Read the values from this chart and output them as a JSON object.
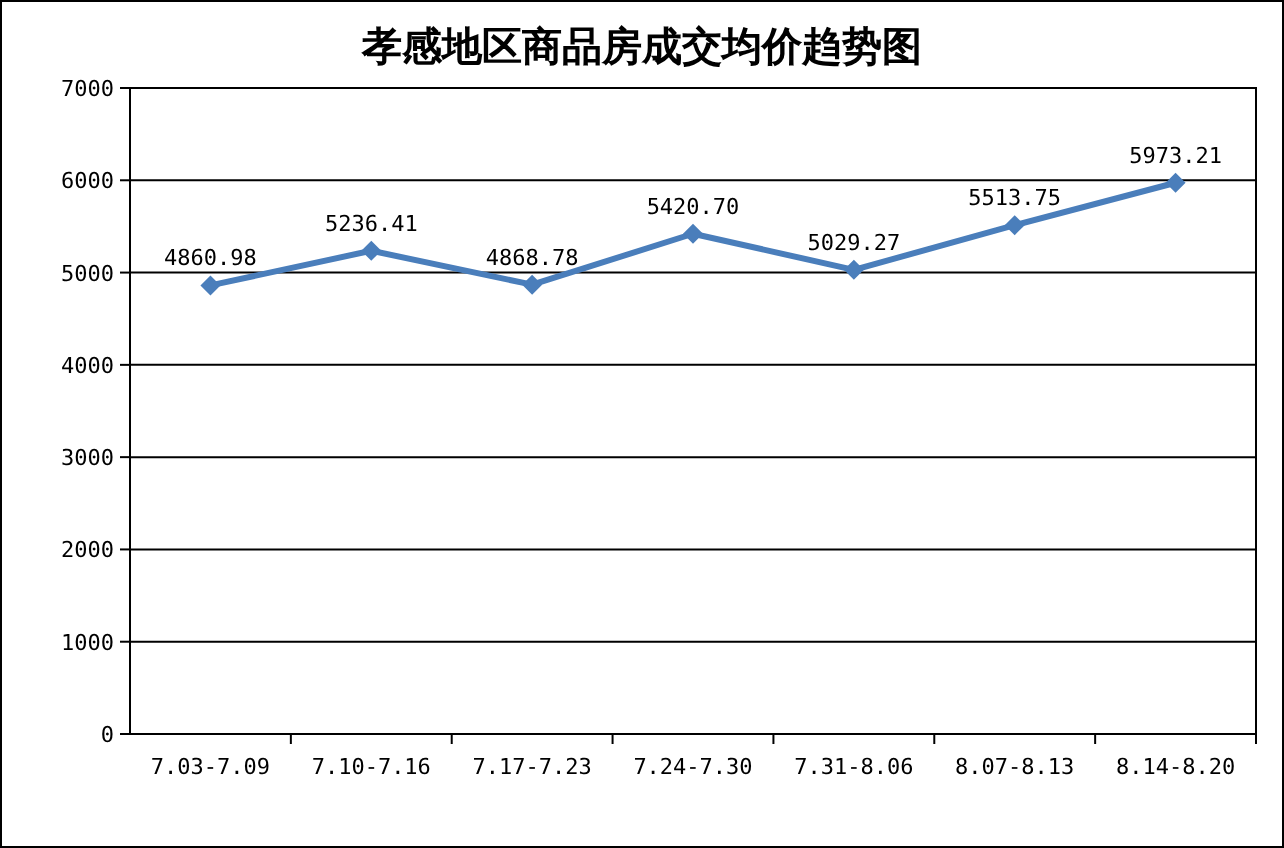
{
  "chart_data": {
    "type": "line",
    "title": "孝感地区商品房成交均价趋势图",
    "categories": [
      "7.03-7.09",
      "7.10-7.16",
      "7.17-7.23",
      "7.24-7.30",
      "7.31-8.06",
      "8.07-8.13",
      "8.14-8.20"
    ],
    "series": [
      {
        "color": "#4a7ebb",
        "values": [
          4860.98,
          5236.41,
          4868.78,
          5420.7,
          5029.27,
          5513.75,
          5973.21
        ],
        "value_labels": [
          "4860.98",
          "5236.41",
          "4868.78",
          "5420.70",
          "5029.27",
          "5513.75",
          "5973.21"
        ]
      }
    ],
    "ylim": [
      0,
      7000
    ],
    "yticks": [
      0,
      1000,
      2000,
      3000,
      4000,
      5000,
      6000,
      7000
    ],
    "grid": "y",
    "marker": "diamond",
    "line_style": "solid"
  }
}
